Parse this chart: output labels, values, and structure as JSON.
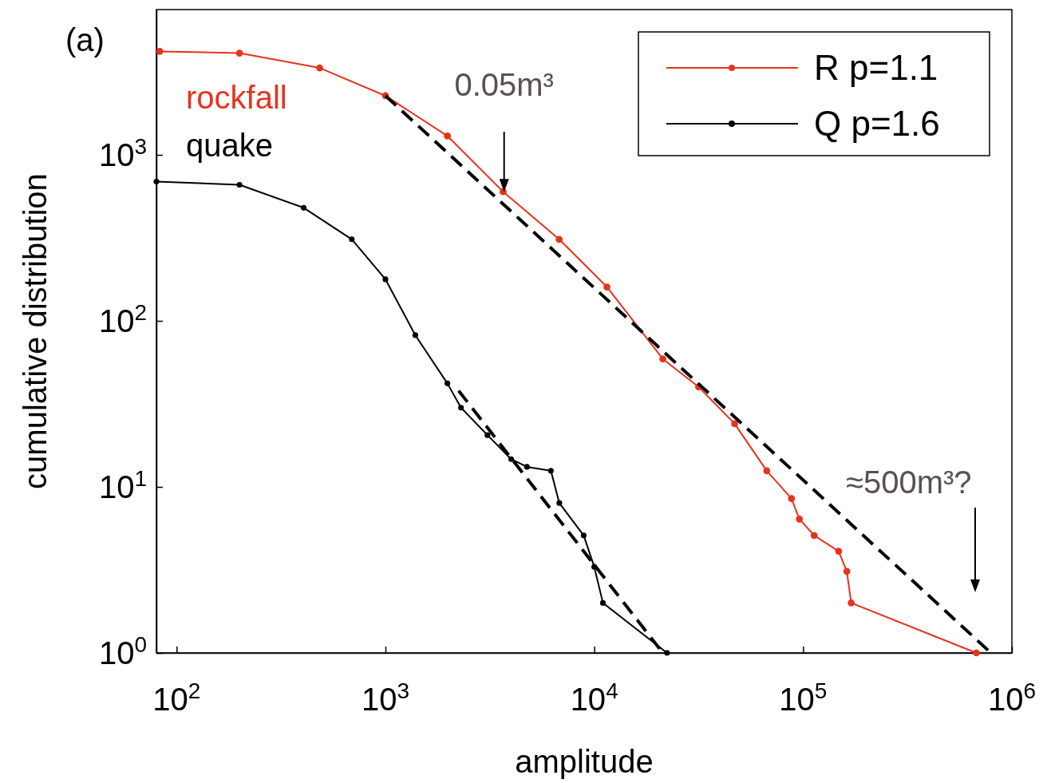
{
  "chart_data": {
    "type": "line",
    "xlabel": "amplitude",
    "ylabel": "cumulative distribution",
    "log": "xy",
    "xlim": [
      80,
      1000000
    ],
    "ylim": [
      1,
      7500
    ],
    "xticks": [
      {
        "value": 100,
        "label": "10$^{2}$"
      },
      {
        "value": 1000,
        "label": "10$^{3}$"
      },
      {
        "value": 10000,
        "label": "10$^{4}$"
      },
      {
        "value": 100000,
        "label": "10$^{5}$"
      },
      {
        "value": 1000000,
        "label": "10$^{6}$"
      }
    ],
    "yticks": [
      {
        "value": 1,
        "label": "10$^{0}$"
      },
      {
        "value": 10,
        "label": "10$^{1}$"
      },
      {
        "value": 100,
        "label": "10$^{2}$"
      },
      {
        "value": 1000,
        "label": "10$^{3}$"
      }
    ],
    "grid": false,
    "legend": "top right",
    "marker": "circle",
    "line_style": "solid",
    "series": [
      {
        "name": "R p=1.1",
        "color": "#e8321e",
        "x": [
          83,
          200,
          484,
          1000,
          1980,
          3660,
          6790,
          11500,
          21300,
          31600,
          47000,
          67000,
          88000,
          96000,
          113000,
          148000,
          162000,
          170000,
          676000
        ],
        "values": [
          4200,
          4100,
          3340,
          2270,
          1300,
          600,
          310,
          160,
          59,
          40,
          24,
          12.5,
          8.5,
          6.4,
          5.1,
          4.1,
          3.1,
          2.0,
          1
        ]
      },
      {
        "name": "Q p=1.6",
        "color": "#000000",
        "x": [
          80,
          200,
          406,
          690,
          1000,
          1390,
          1980,
          2300,
          3080,
          4000,
          4760,
          6200,
          6800,
          8900,
          10000,
          11000,
          22300
        ],
        "values": [
          690,
          660,
          480,
          310,
          178,
          82,
          42,
          30,
          20.5,
          14.7,
          13.2,
          12.5,
          8.0,
          5.1,
          3.3,
          2.0,
          1
        ]
      },
      {
        "type": "line",
        "color": "#000000",
        "marker": "none",
        "line_style": "dashed",
        "x": [
          1000,
          794000
        ],
        "values": [
          2270,
          1
        ]
      },
      {
        "type": "line",
        "color": "#000000",
        "marker": "none",
        "line_style": "dashed",
        "x": [
          2240,
          21300
        ],
        "values": [
          38,
          1
        ]
      }
    ],
    "annotations": [
      "(a)",
      "rockfall",
      "quake",
      {
        "text": "0.05m³",
        "x": 3700,
        "y": 600
      },
      "≈500m³?"
    ]
  }
}
